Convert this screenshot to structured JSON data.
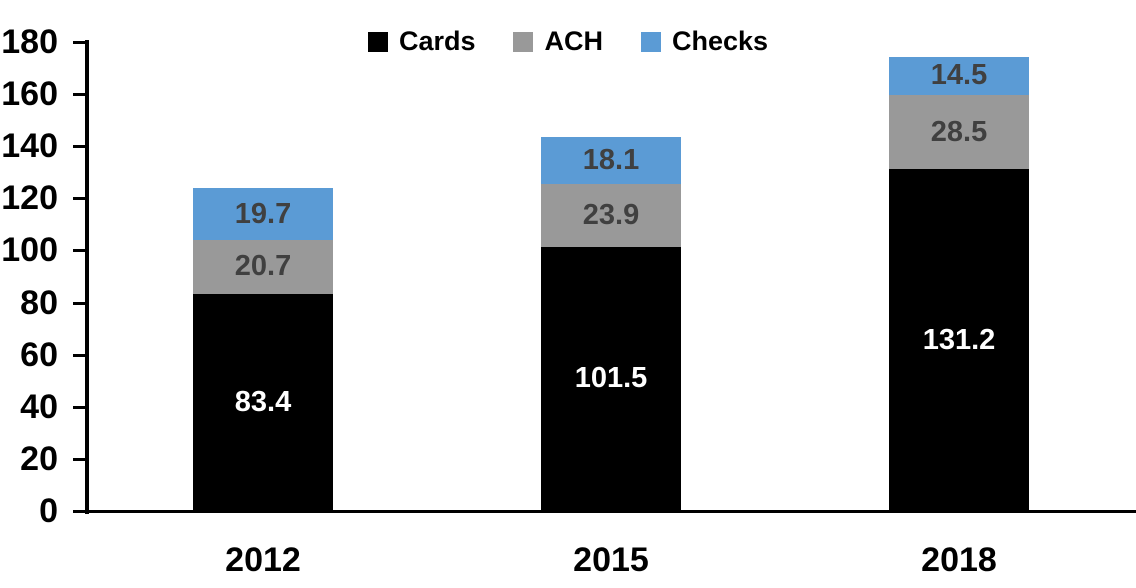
{
  "chart_data": {
    "type": "bar",
    "stacked": true,
    "title": "",
    "xlabel": "",
    "ylabel": "",
    "categories": [
      "2012",
      "2015",
      "2018"
    ],
    "series": [
      {
        "name": "Cards",
        "values": [
          83.4,
          101.5,
          131.2
        ],
        "color": "#000000",
        "label_color": "#ffffff"
      },
      {
        "name": "ACH",
        "values": [
          20.7,
          23.9,
          28.5
        ],
        "color": "#999999",
        "label_color": "#404040"
      },
      {
        "name": "Checks",
        "values": [
          19.7,
          18.1,
          14.5
        ],
        "color": "#5b9bd5",
        "label_color": "#404040"
      }
    ],
    "ylim": [
      0,
      180
    ],
    "yticks": [
      0,
      20,
      40,
      60,
      80,
      100,
      120,
      140,
      160,
      180
    ],
    "grid": false,
    "legend_position": "top-center",
    "axis_color": "#000000",
    "data_labels_visible": true
  }
}
